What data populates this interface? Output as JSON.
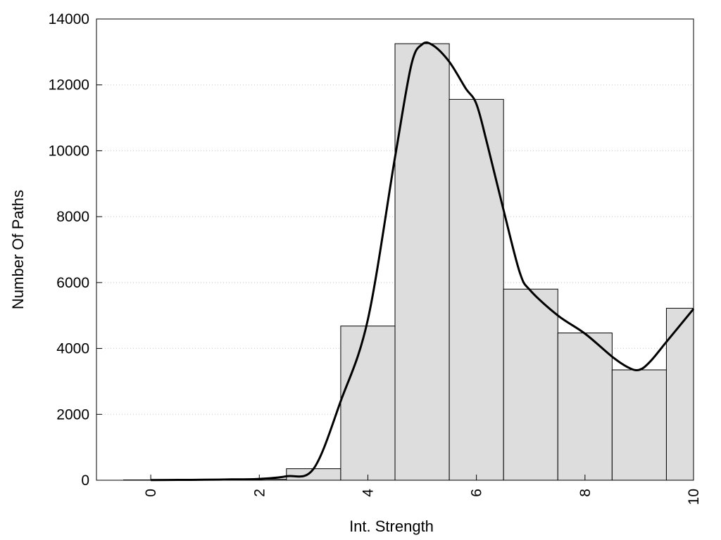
{
  "chart_data": {
    "type": "bar",
    "title": "",
    "xlabel": "Int. Strength",
    "ylabel": "Number Of Paths",
    "xlim": [
      -1,
      10
    ],
    "ylim": [
      0,
      14000
    ],
    "xticks": [
      0,
      2,
      4,
      6,
      8,
      10
    ],
    "yticks": [
      0,
      2000,
      4000,
      6000,
      8000,
      10000,
      12000,
      14000
    ],
    "grid": {
      "y": true,
      "style": "dotted"
    },
    "legend": "none",
    "colors": {
      "bar_fill": "#dddddd",
      "bar_stroke": "#000000",
      "curve": "#000000",
      "grid": "#c8c8c8"
    },
    "categories": [
      0,
      1,
      2,
      3,
      4,
      5,
      6,
      7,
      8,
      9,
      10
    ],
    "values": [
      10,
      15,
      30,
      350,
      4680,
      13250,
      11560,
      5800,
      4470,
      3350,
      5220
    ],
    "series": [
      {
        "type": "line",
        "smooth": true,
        "x": [
          0,
          0.5,
          1,
          1.5,
          2,
          2.5,
          3,
          3.5,
          4,
          4.5,
          4.8,
          5,
          5.2,
          5.5,
          5.8,
          6,
          6.2,
          6.5,
          6.8,
          7,
          7.5,
          8,
          8.5,
          8.8,
          9,
          9.2,
          9.5,
          10
        ],
        "y": [
          5,
          10,
          15,
          25,
          40,
          120,
          350,
          2400,
          4880,
          9800,
          12600,
          13230,
          13200,
          12700,
          11900,
          11420,
          10200,
          8200,
          6300,
          5750,
          5000,
          4450,
          3750,
          3420,
          3350,
          3600,
          4200,
          5200
        ]
      }
    ]
  }
}
